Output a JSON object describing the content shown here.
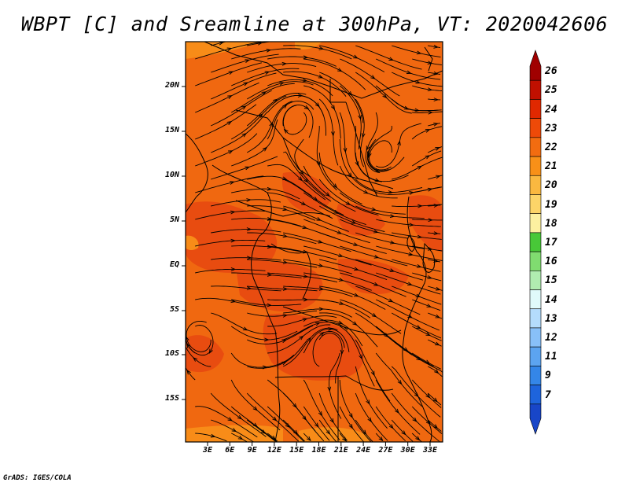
{
  "title": "WBPT [C] and Sreamline at 300hPa, VT: 2020042606",
  "credit": "GrADS: IGES/COLA",
  "map": {
    "lat_labels": [
      "20N",
      "15N",
      "10N",
      "5N",
      "EQ",
      "5S",
      "10S",
      "15S"
    ],
    "lon_labels": [
      "3E",
      "6E",
      "9E",
      "12E",
      "15E",
      "18E",
      "21E",
      "24E",
      "27E",
      "30E",
      "33E"
    ],
    "fill_main_color": "#f06810",
    "fill_warm_color": "#e84c10",
    "fill_cool_color": "#f88c18",
    "streamline_color": "#000000"
  },
  "colorbar": {
    "labels": [
      "26",
      "25",
      "24",
      "23",
      "22",
      "21",
      "20",
      "19",
      "18",
      "17",
      "16",
      "15",
      "14",
      "13",
      "12",
      "11",
      "9",
      "7"
    ],
    "colors": [
      "#a00000",
      "#c01000",
      "#e02800",
      "#ee4a08",
      "#f26c10",
      "#f89018",
      "#fab840",
      "#fcd468",
      "#fcf0a0",
      "#48c838",
      "#80dc70",
      "#b0ecb0",
      "#e0fafa",
      "#b4dcfc",
      "#88c0f8",
      "#5ca4f0",
      "#3486e8",
      "#1e64dc",
      "#1846c8"
    ]
  }
}
